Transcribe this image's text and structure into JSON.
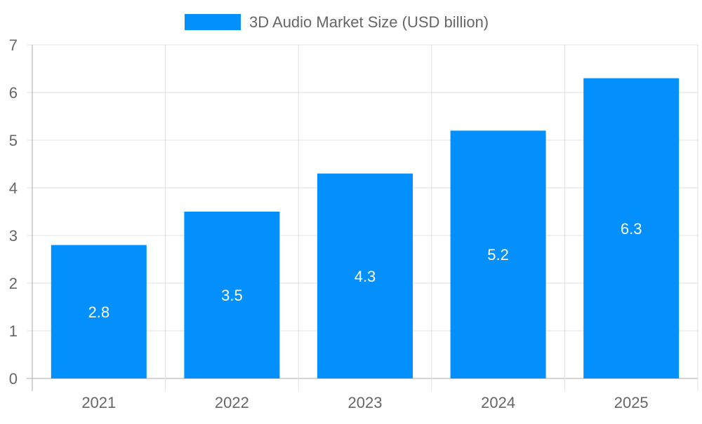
{
  "chart_data": {
    "type": "bar",
    "title": "",
    "categories": [
      "2021",
      "2022",
      "2023",
      "2024",
      "2025"
    ],
    "series": [
      {
        "name": "3D Audio Market Size (USD billion)",
        "values": [
          2.8,
          3.5,
          4.3,
          5.2,
          6.3
        ],
        "color": "#038ffc"
      }
    ],
    "data_labels": [
      "2.8",
      "3.5",
      "4.3",
      "5.2",
      "6.3"
    ],
    "xlabel": "",
    "ylabel": "",
    "ylim": [
      0,
      7
    ],
    "yticks": [
      "0",
      "1",
      "2",
      "3",
      "4",
      "5",
      "6",
      "7"
    ],
    "grid": true,
    "legend_position": "top"
  }
}
